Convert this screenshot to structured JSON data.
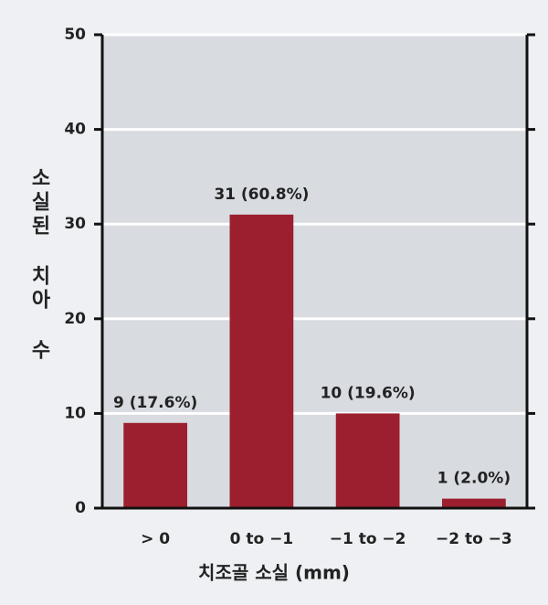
{
  "chart_data": {
    "type": "bar",
    "categories": [
      "> 0",
      "0 to −1",
      "−1 to −2",
      "−2 to −3"
    ],
    "values": [
      9,
      31,
      10,
      1
    ],
    "value_labels": [
      "9 (17.6%)",
      "31 (60.8%)",
      "10 (19.6%)",
      "1 (2.0%)"
    ],
    "color": "#9b1f2e",
    "x_label": "치조골 소실 (mm)",
    "y_label": "소실된 치아 수",
    "ylim": [
      0,
      50
    ],
    "yticks": [
      0,
      10,
      20,
      30,
      40,
      50
    ],
    "grid": true
  }
}
